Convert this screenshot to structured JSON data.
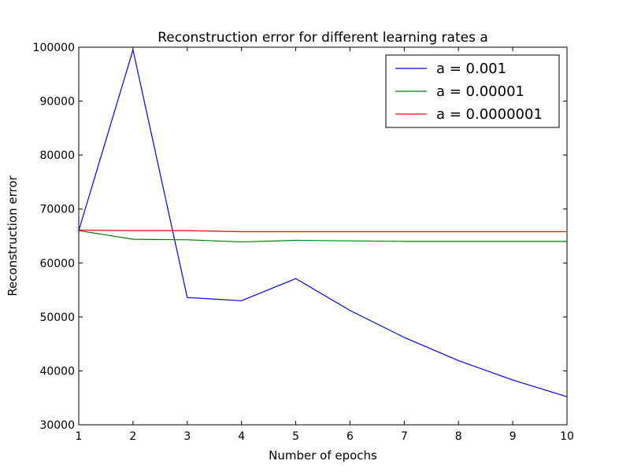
{
  "chart_data": {
    "type": "line",
    "title": "Reconstruction error for different learning rates a",
    "xlabel": "Number of epochs",
    "ylabel": "Reconstruction error",
    "x": [
      1,
      2,
      3,
      4,
      5,
      6,
      7,
      8,
      9,
      10
    ],
    "xlim": [
      1,
      10
    ],
    "ylim": [
      30000,
      100000
    ],
    "xticks": [
      1,
      2,
      3,
      4,
      5,
      6,
      7,
      8,
      9,
      10
    ],
    "yticks": [
      30000,
      40000,
      50000,
      60000,
      70000,
      80000,
      90000,
      100000
    ],
    "grid": false,
    "legend_position": "top-right",
    "series": [
      {
        "name": "a = 0.001",
        "color": "#0000ff",
        "values": [
          66000,
          99500,
          53600,
          53000,
          57100,
          51200,
          46200,
          41900,
          38300,
          35200
        ]
      },
      {
        "name": "a = 0.00001",
        "color": "#008000",
        "values": [
          66000,
          64400,
          64300,
          63900,
          64200,
          64100,
          64000,
          64000,
          64000,
          64000
        ]
      },
      {
        "name": "a = 0.0000001",
        "color": "#ff0000",
        "values": [
          66100,
          66000,
          66000,
          65800,
          65800,
          65800,
          65800,
          65800,
          65800,
          65800
        ]
      }
    ]
  }
}
